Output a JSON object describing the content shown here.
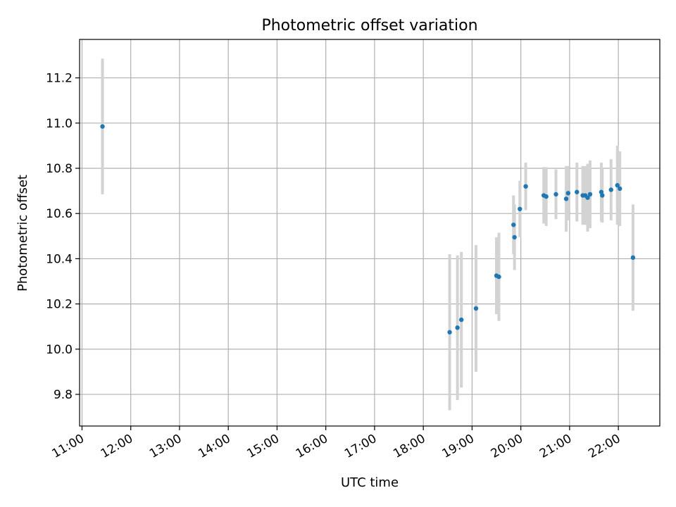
{
  "chart_data": {
    "type": "scatter",
    "title": "Photometric offset variation",
    "xlabel": "UTC time",
    "ylabel": "Photometric offset",
    "x_unit": "UTC hour of day",
    "xlim": [
      10.95,
      22.85
    ],
    "ylim": [
      9.66,
      11.37
    ],
    "x_ticks": [
      {
        "value": 11,
        "label": "11:00"
      },
      {
        "value": 12,
        "label": "12:00"
      },
      {
        "value": 13,
        "label": "13:00"
      },
      {
        "value": 14,
        "label": "14:00"
      },
      {
        "value": 15,
        "label": "15:00"
      },
      {
        "value": 16,
        "label": "16:00"
      },
      {
        "value": 17,
        "label": "17:00"
      },
      {
        "value": 18,
        "label": "18:00"
      },
      {
        "value": 19,
        "label": "19:00"
      },
      {
        "value": 20,
        "label": "20:00"
      },
      {
        "value": 21,
        "label": "21:00"
      },
      {
        "value": 22,
        "label": "22:00"
      }
    ],
    "y_ticks": [
      {
        "value": 9.8,
        "label": "9.8"
      },
      {
        "value": 10.0,
        "label": "10.0"
      },
      {
        "value": 10.2,
        "label": "10.2"
      },
      {
        "value": 10.4,
        "label": "10.4"
      },
      {
        "value": 10.6,
        "label": "10.6"
      },
      {
        "value": 10.8,
        "label": "10.8"
      },
      {
        "value": 11.0,
        "label": "11.0"
      },
      {
        "value": 11.2,
        "label": "11.2"
      }
    ],
    "grid": true,
    "point_color": "#1f77b4",
    "errorbar_color": "#d3d3d3",
    "series": [
      {
        "points": [
          {
            "x": 11.42,
            "y": 10.985,
            "yerr": 0.3
          },
          {
            "x": 18.54,
            "y": 10.075,
            "yerr": 0.345
          },
          {
            "x": 18.7,
            "y": 10.095,
            "yerr": 0.32
          },
          {
            "x": 18.78,
            "y": 10.13,
            "yerr": 0.3
          },
          {
            "x": 19.08,
            "y": 10.18,
            "yerr": 0.28
          },
          {
            "x": 19.5,
            "y": 10.325,
            "yerr": 0.17
          },
          {
            "x": 19.55,
            "y": 10.32,
            "yerr": 0.195
          },
          {
            "x": 19.85,
            "y": 10.55,
            "yerr": 0.13
          },
          {
            "x": 19.87,
            "y": 10.495,
            "yerr": 0.145
          },
          {
            "x": 19.98,
            "y": 10.62,
            "yerr": 0.125
          },
          {
            "x": 20.1,
            "y": 10.72,
            "yerr": 0.105
          },
          {
            "x": 20.47,
            "y": 10.68,
            "yerr": 0.125
          },
          {
            "x": 20.52,
            "y": 10.675,
            "yerr": 0.13
          },
          {
            "x": 20.72,
            "y": 10.685,
            "yerr": 0.11
          },
          {
            "x": 20.93,
            "y": 10.665,
            "yerr": 0.145
          },
          {
            "x": 20.97,
            "y": 10.69,
            "yerr": 0.12
          },
          {
            "x": 21.15,
            "y": 10.695,
            "yerr": 0.13
          },
          {
            "x": 21.27,
            "y": 10.68,
            "yerr": 0.13
          },
          {
            "x": 21.32,
            "y": 10.68,
            "yerr": 0.13
          },
          {
            "x": 21.37,
            "y": 10.67,
            "yerr": 0.15
          },
          {
            "x": 21.42,
            "y": 10.685,
            "yerr": 0.15
          },
          {
            "x": 21.65,
            "y": 10.695,
            "yerr": 0.13
          },
          {
            "x": 21.67,
            "y": 10.68,
            "yerr": 0.12
          },
          {
            "x": 21.85,
            "y": 10.705,
            "yerr": 0.135
          },
          {
            "x": 21.98,
            "y": 10.725,
            "yerr": 0.175
          },
          {
            "x": 22.03,
            "y": 10.71,
            "yerr": 0.165
          },
          {
            "x": 22.3,
            "y": 10.405,
            "yerr": 0.235
          }
        ]
      }
    ]
  }
}
